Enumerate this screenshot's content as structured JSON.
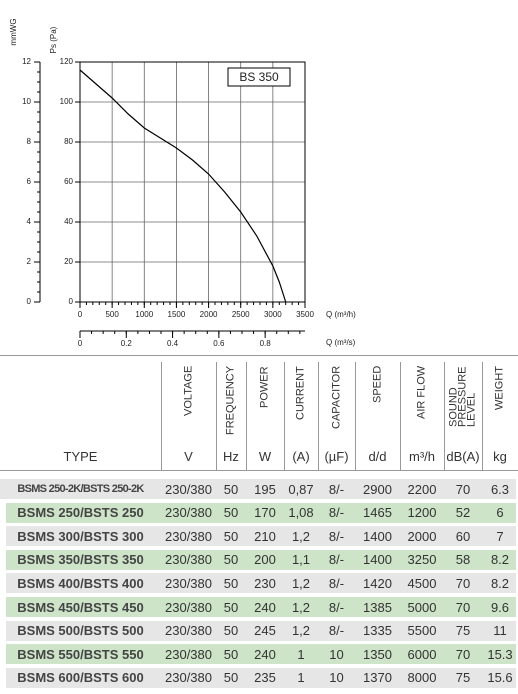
{
  "chart_data": {
    "type": "line",
    "annotation": "BS 350",
    "ylabel": "Ps (Pa)",
    "y2label": "mmWG",
    "xlabel": "Q (m³/h)",
    "x2label": "Q (m³/s)",
    "x": [
      0,
      250,
      500,
      750,
      1000,
      1250,
      1500,
      1750,
      2000,
      2250,
      2500,
      2750,
      3000,
      3100,
      3200
    ],
    "series": [
      {
        "name": "BS 350",
        "color": "#000000",
        "values": [
          116,
          109,
          102,
          94,
          87,
          82,
          77,
          71,
          64,
          55,
          45,
          33,
          18,
          10,
          0
        ]
      }
    ],
    "xlim": [
      0,
      3500
    ],
    "xticks": [
      0,
      500,
      1000,
      1500,
      2000,
      2500,
      3000,
      3500
    ],
    "ylim": [
      0,
      120
    ],
    "yticks": [
      0,
      20,
      40,
      60,
      80,
      100,
      120
    ],
    "y2lim": [
      0,
      12
    ],
    "y2ticks": [
      0,
      2,
      4,
      6,
      8,
      10,
      12
    ],
    "x2lim": [
      0,
      0.9722
    ],
    "x2ticks": [
      0,
      0.2,
      0.4,
      0.6,
      0.8
    ],
    "grid": true
  },
  "table": {
    "columns": [
      {
        "label": "TYPE"
      },
      {
        "label": "VOLTAGE",
        "unit": "V"
      },
      {
        "label": "FREQUENCY",
        "unit": "Hz"
      },
      {
        "label": "POWER",
        "unit": "W"
      },
      {
        "label": "CURRENT",
        "unit": "(A)"
      },
      {
        "label": "CAPACITOR",
        "unit": "(µF)"
      },
      {
        "label": "SPEED",
        "unit": "d/d"
      },
      {
        "label": "AIR FLOW",
        "unit": "m³/h"
      },
      {
        "label": "SOUND\nPRESSURE\nLEVEL",
        "unit": "dB(A)"
      },
      {
        "label": "WEIGHT",
        "unit": "kg"
      }
    ],
    "stripe_colors": [
      "#e6e6e6",
      "#cde4c8"
    ],
    "rows": [
      [
        "BSMS 250-2K/BSTS 250-2K",
        "230/380",
        "50",
        "195",
        "0,87",
        "8/-",
        "2900",
        "2200",
        "70",
        "6.3"
      ],
      [
        "BSMS 250/BSTS 250",
        "230/380",
        "50",
        "170",
        "1,08",
        "8/-",
        "1465",
        "1200",
        "52",
        "6"
      ],
      [
        "BSMS 300/BSTS 300",
        "230/380",
        "50",
        "210",
        "1,2",
        "8/-",
        "1400",
        "2000",
        "60",
        "7"
      ],
      [
        "BSMS 350/BSTS 350",
        "230/380",
        "50",
        "200",
        "1,1",
        "8/-",
        "1400",
        "3250",
        "58",
        "8.2"
      ],
      [
        "BSMS 400/BSTS 400",
        "230/380",
        "50",
        "230",
        "1,2",
        "8/-",
        "1420",
        "4500",
        "70",
        "8.2"
      ],
      [
        "BSMS 450/BSTS 450",
        "230/380",
        "50",
        "240",
        "1,2",
        "8/-",
        "1385",
        "5000",
        "70",
        "9.6"
      ],
      [
        "BSMS 500/BSTS 500",
        "230/380",
        "50",
        "245",
        "1,2",
        "8/-",
        "1335",
        "5500",
        "75",
        "11"
      ],
      [
        "BSMS 550/BSTS 550",
        "230/380",
        "50",
        "240",
        "1",
        "10",
        "1350",
        "6000",
        "70",
        "15.3"
      ],
      [
        "BSMS 600/BSTS 600",
        "230/380",
        "50",
        "235",
        "1",
        "10",
        "1370",
        "8000",
        "75",
        "15.6"
      ]
    ]
  }
}
